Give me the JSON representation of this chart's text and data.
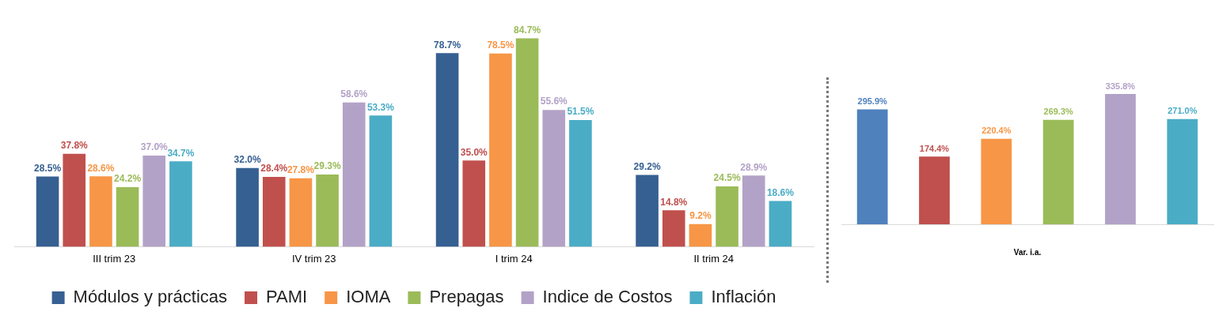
{
  "chart_data": [
    {
      "type": "bar",
      "categories": [
        "III trim 23",
        "IV trim 23",
        "I trim 24",
        "II trim 24"
      ],
      "legend": "bottom",
      "series": [
        {
          "name": "Módulos y prácticas",
          "color": "#366092",
          "values": [
            28.5,
            32.0,
            78.7,
            29.2
          ],
          "value_labels": [
            "28.5%",
            "32.0%",
            "78.7%",
            "29.2%"
          ]
        },
        {
          "name": "PAMI",
          "color": "#c0504d",
          "values": [
            37.8,
            28.4,
            35.0,
            14.8
          ],
          "value_labels": [
            "37.8%",
            "28.4%",
            "35.0%",
            "14.8%"
          ]
        },
        {
          "name": "IOMA",
          "color": "#f79646",
          "values": [
            28.6,
            27.8,
            78.5,
            9.2
          ],
          "value_labels": [
            "28.6%",
            "27.8%",
            "78.5%",
            "9.2%"
          ]
        },
        {
          "name": "Prepagas",
          "color": "#9bbb59",
          "values": [
            24.2,
            29.3,
            84.7,
            24.5
          ],
          "value_labels": [
            "24.2%",
            "29.3%",
            "84.7%",
            "24.5%"
          ]
        },
        {
          "name": "Indice de Costos",
          "color": "#b3a2c7",
          "values": [
            37.0,
            58.6,
            55.6,
            28.9
          ],
          "value_labels": [
            "37.0%",
            "58.6%",
            "55.6%",
            "28.9%"
          ]
        },
        {
          "name": "Inflación",
          "color": "#4bacc6",
          "values": [
            34.7,
            53.3,
            51.5,
            18.6
          ],
          "value_labels": [
            "34.7%",
            "53.3%",
            "51.5%",
            "18.6%"
          ]
        }
      ]
    },
    {
      "type": "bar",
      "xlabel": "Var. i.a.",
      "categories": [
        null,
        null,
        null,
        null,
        null,
        null
      ],
      "values": [
        295.9,
        174.4,
        220.4,
        269.3,
        335.8,
        271.0
      ],
      "colors": [
        "#4f81bd",
        "#c0504d",
        "#f79646",
        "#9bbb59",
        "#b3a2c7",
        "#4bacc6"
      ],
      "value_labels": [
        "295.9%",
        "174.4%",
        "220.4%",
        "269.3%",
        "335.8%",
        "271.0%"
      ]
    }
  ]
}
